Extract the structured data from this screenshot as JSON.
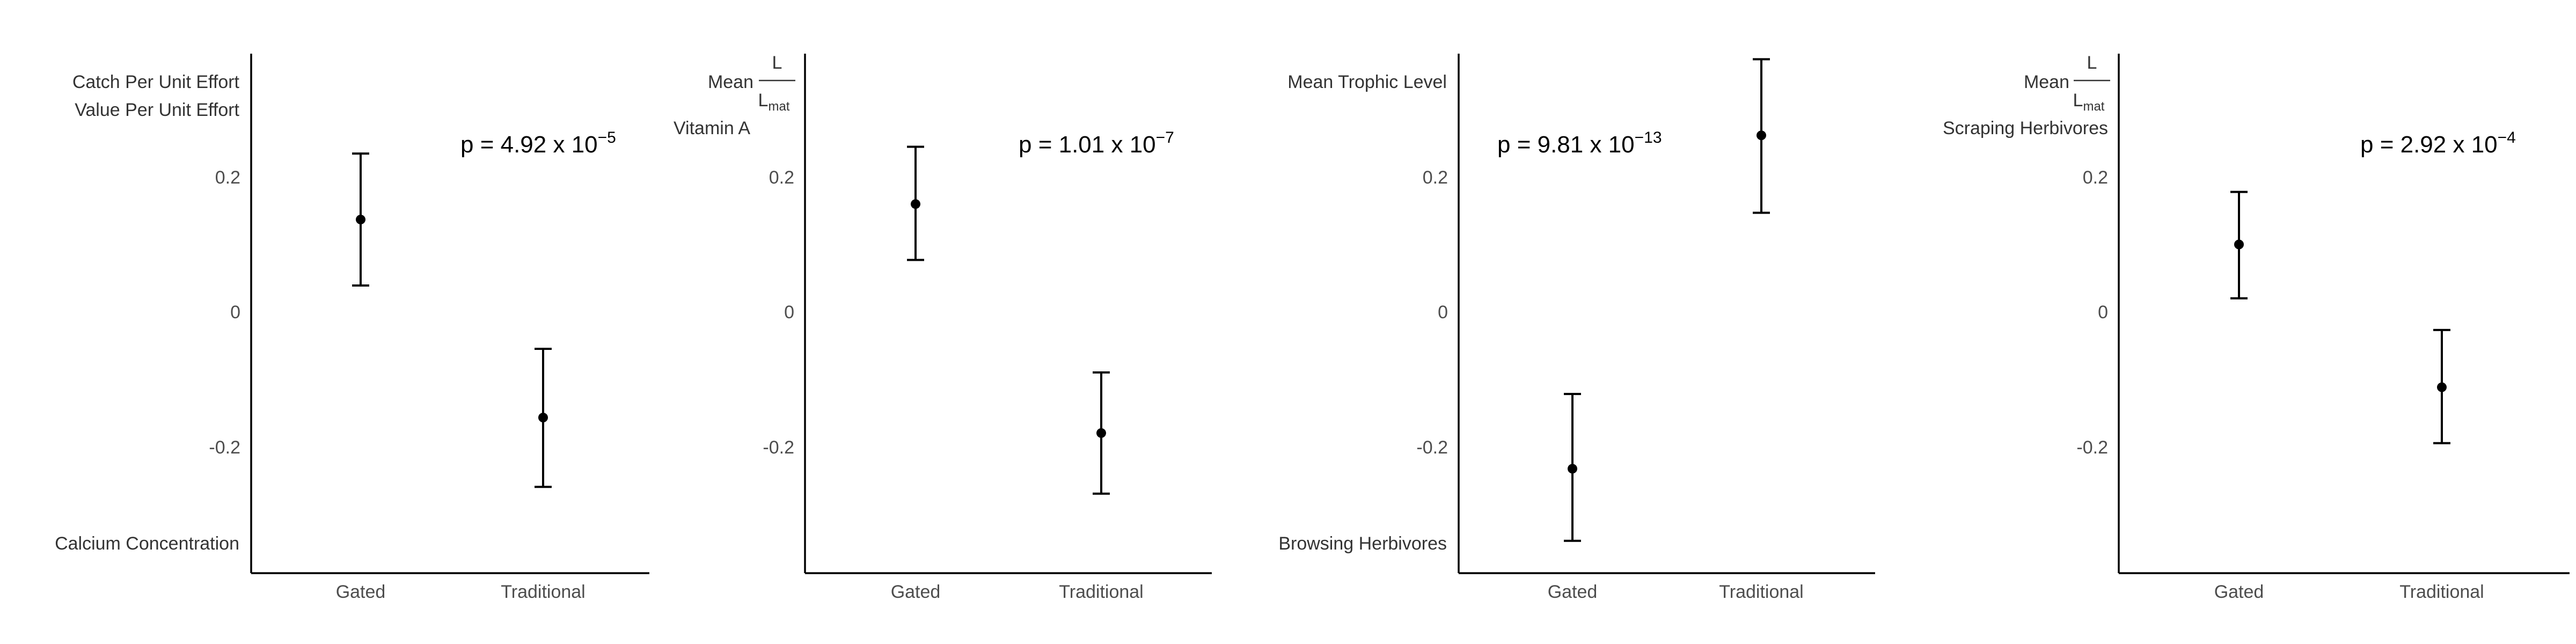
{
  "chart_data": [
    {
      "type": "errorbar",
      "categories": [
        "Gated",
        "Traditional"
      ],
      "ylim": [
        -0.4,
        0.38
      ],
      "yticks": [
        0.2,
        0,
        -0.2
      ],
      "ytick_labels": [
        "0.2",
        "0",
        "-0.2"
      ],
      "points": [
        {
          "category": "Gated",
          "mean": 0.137,
          "lower": 0.039,
          "upper": 0.235
        },
        {
          "category": "Traditional",
          "mean": -0.157,
          "lower": -0.26,
          "upper": -0.055
        }
      ],
      "top_labels": [
        "Catch Per Unit Effort",
        "Value Per Unit Effort"
      ],
      "bottom_labels": [
        "Calcium Concentration"
      ],
      "p_value": {
        "text": "p = 4.92 x 10",
        "exponent": "−5"
      }
    },
    {
      "type": "errorbar",
      "categories": [
        "Gated",
        "Traditional"
      ],
      "ylim": [
        -0.4,
        0.38
      ],
      "yticks": [
        0.2,
        0,
        -0.2
      ],
      "ytick_labels": [
        "0.2",
        "0",
        "-0.2"
      ],
      "points": [
        {
          "category": "Gated",
          "mean": 0.16,
          "lower": 0.077,
          "upper": 0.245
        },
        {
          "category": "Traditional",
          "mean": -0.18,
          "lower": -0.27,
          "upper": -0.09
        }
      ],
      "top_labels_fraction": {
        "prefix": "Mean",
        "numerator": "L",
        "denominator": "L",
        "denominator_sub": "mat"
      },
      "top_labels": [
        "Vitamin A"
      ],
      "bottom_labels": [],
      "p_value": {
        "text": "p = 1.01 x 10",
        "exponent": "−7"
      }
    },
    {
      "type": "errorbar",
      "categories": [
        "Gated",
        "Traditional"
      ],
      "ylim": [
        -0.4,
        0.38
      ],
      "yticks": [
        0.2,
        0,
        -0.2
      ],
      "ytick_labels": [
        "0.2",
        "0",
        "-0.2"
      ],
      "points": [
        {
          "category": "Gated",
          "mean": -0.233,
          "lower": -0.34,
          "upper": -0.122
        },
        {
          "category": "Traditional",
          "mean": 0.262,
          "lower": 0.147,
          "upper": 0.375
        }
      ],
      "top_labels": [
        "Mean Trophic Level"
      ],
      "bottom_labels": [
        "Browsing Herbivores"
      ],
      "p_value": {
        "text": "p = 9.81 x 10",
        "exponent": "−13"
      }
    },
    {
      "type": "errorbar",
      "categories": [
        "Gated",
        "Traditional"
      ],
      "ylim": [
        -0.4,
        0.38
      ],
      "yticks": [
        0.2,
        0,
        -0.2
      ],
      "ytick_labels": [
        "0.2",
        "0",
        "-0.2"
      ],
      "points": [
        {
          "category": "Gated",
          "mean": 0.1,
          "lower": 0.02,
          "upper": 0.178
        },
        {
          "category": "Traditional",
          "mean": -0.112,
          "lower": -0.195,
          "upper": -0.027
        }
      ],
      "top_labels_fraction": {
        "prefix": "Mean",
        "numerator": "L",
        "denominator": "L",
        "denominator_sub": "mat"
      },
      "top_labels": [
        "Scraping Herbivores"
      ],
      "bottom_labels": [],
      "p_value": {
        "text": "p = 2.92 x 10",
        "exponent": "−4"
      }
    }
  ]
}
